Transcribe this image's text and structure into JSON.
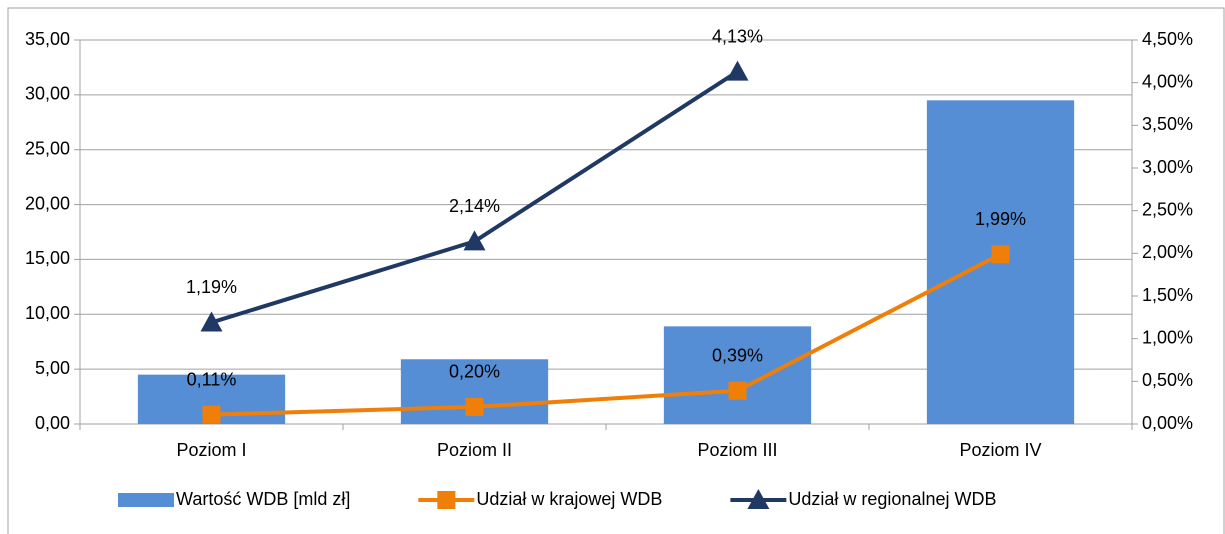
{
  "chart_data": {
    "type": "bar",
    "categories": [
      "Poziom I",
      "Poziom II",
      "Poziom III",
      "Poziom IV"
    ],
    "series": [
      {
        "name": "Wartość WDB [mld zł]",
        "type": "bar",
        "color": "#558ed5",
        "values": [
          4.5,
          5.9,
          8.9,
          29.5
        ]
      },
      {
        "name": "Udział w krajowej WDB",
        "type": "line",
        "marker": "square",
        "axis": "y2",
        "color": "#f07f09",
        "values": [
          0.11,
          0.2,
          0.39,
          1.99
        ],
        "value_labels": [
          "0,11%",
          "0,20%",
          "0,39%",
          "1,99%"
        ]
      },
      {
        "name": "Udział w regionalnej WDB",
        "type": "line",
        "marker": "triangle",
        "axis": "y2",
        "color": "#1f3864",
        "values": [
          1.19,
          2.14,
          4.13,
          null
        ],
        "value_labels": [
          "1,19%",
          "2,14%",
          "4,13%",
          null
        ]
      }
    ],
    "ylim": [
      0,
      35
    ],
    "yticks": [
      {
        "value": 0,
        "label": "0,00"
      },
      {
        "value": 5,
        "label": "5,00"
      },
      {
        "value": 10,
        "label": "10,00"
      },
      {
        "value": 15,
        "label": "15,00"
      },
      {
        "value": 20,
        "label": "20,00"
      },
      {
        "value": 25,
        "label": "25,00"
      },
      {
        "value": 30,
        "label": "30,00"
      },
      {
        "value": 35,
        "label": "35,00"
      }
    ],
    "y2lim": [
      0,
      4.5
    ],
    "y2ticks": [
      {
        "value": 0,
        "label": "0,00%"
      },
      {
        "value": 0.5,
        "label": "0,50%"
      },
      {
        "value": 1,
        "label": "1,00%"
      },
      {
        "value": 1.5,
        "label": "1,50%"
      },
      {
        "value": 2,
        "label": "2,00%"
      },
      {
        "value": 2.5,
        "label": "2,50%"
      },
      {
        "value": 3,
        "label": "3,00%"
      },
      {
        "value": 3.5,
        "label": "3,50%"
      },
      {
        "value": 4,
        "label": "4,00%"
      },
      {
        "value": 4.5,
        "label": "4,50%"
      }
    ],
    "grid": true,
    "legend": "bottom"
  }
}
